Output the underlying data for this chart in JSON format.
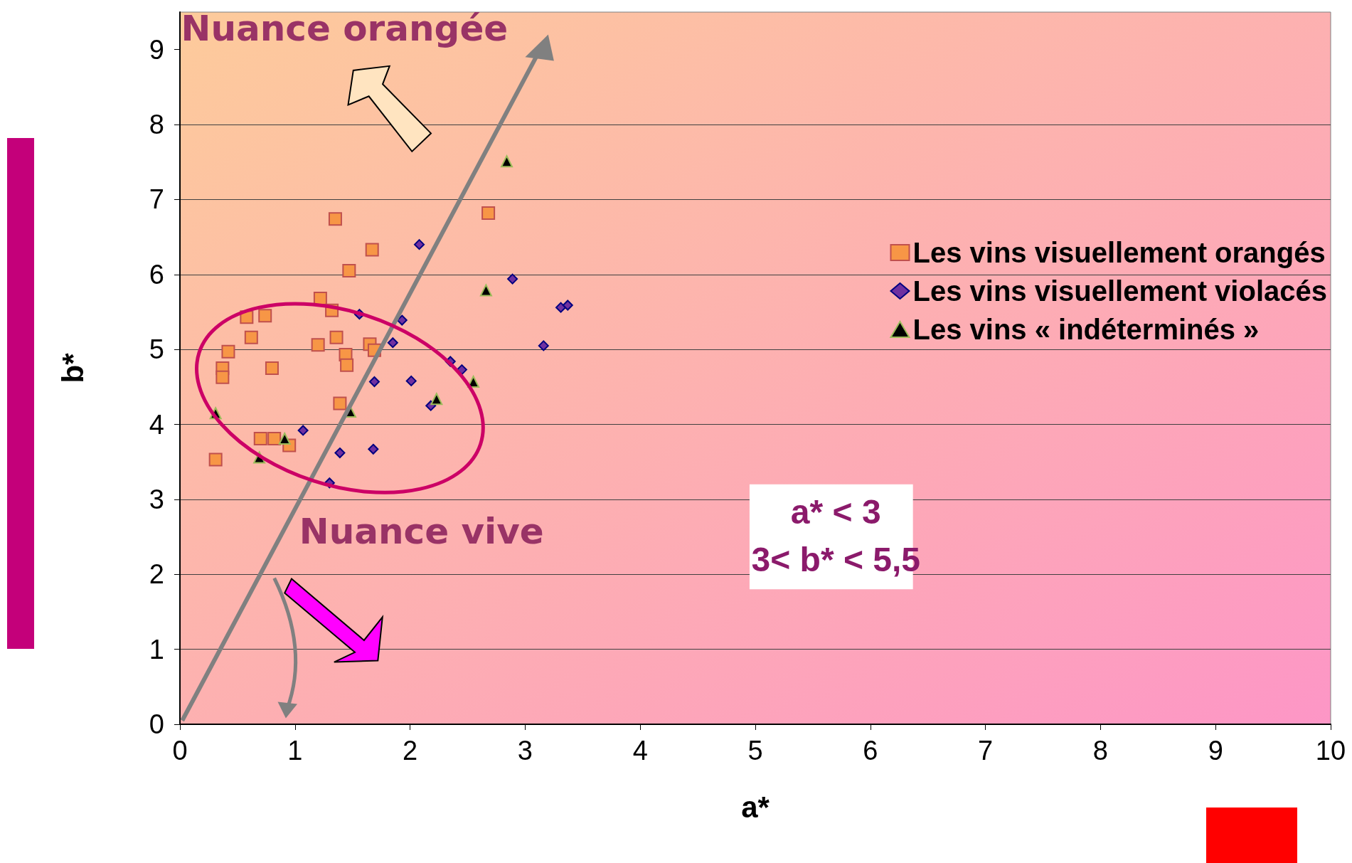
{
  "chart_data": {
    "type": "scatter",
    "xlabel": "a*",
    "ylabel": "b*",
    "xlim": [
      0,
      10
    ],
    "xticks": [
      0,
      1,
      2,
      3,
      4,
      5,
      6,
      7,
      8,
      9,
      10
    ],
    "ylim": [
      0,
      9.5
    ],
    "yticks": [
      0,
      1,
      2,
      3,
      4,
      5,
      6,
      7,
      8,
      9
    ],
    "grid": "y",
    "legend": "right",
    "annotations": [
      "Nuance orangée",
      "Nuance vive",
      "a* < 3",
      "3< b* < 5,5"
    ],
    "series": [
      {
        "name": "Les vins visuellement orangés",
        "color": "#f79646",
        "marker": "square",
        "x": [
          0.31,
          0.37,
          0.37,
          0.42,
          0.58,
          0.62,
          0.74,
          0.8,
          0.7,
          0.82,
          0.95,
          1.35,
          1.67,
          1.47,
          1.22,
          1.32,
          1.2,
          1.36,
          1.44,
          1.45,
          1.65,
          1.69,
          1.39,
          2.68
        ],
        "values": [
          3.53,
          4.75,
          4.63,
          4.97,
          5.43,
          5.16,
          5.45,
          4.75,
          3.81,
          3.81,
          3.72,
          6.74,
          6.33,
          6.05,
          5.68,
          5.52,
          5.06,
          5.16,
          4.93,
          4.79,
          5.07,
          4.99,
          4.28,
          6.82
        ]
      },
      {
        "name": "Les vins visuellement violacés",
        "color": "#7030a0",
        "marker": "diamond",
        "x": [
          2.08,
          2.89,
          1.56,
          1.93,
          1.85,
          3.31,
          3.37,
          3.16,
          2.35,
          2.45,
          1.69,
          2.01,
          2.18,
          1.07,
          1.39,
          1.68,
          1.3
        ],
        "values": [
          6.4,
          5.94,
          5.47,
          5.39,
          5.09,
          5.56,
          5.59,
          5.05,
          4.84,
          4.73,
          4.57,
          4.58,
          4.25,
          3.92,
          3.62,
          3.67,
          3.22
        ]
      },
      {
        "name": "Les vins « indéterminés »",
        "color": "#000000",
        "marker": "triangle",
        "x": [
          0.31,
          0.69,
          0.91,
          1.48,
          2.23,
          2.55,
          2.84,
          2.66
        ],
        "values": [
          4.15,
          3.56,
          3.81,
          4.17,
          4.34,
          4.57,
          7.51,
          5.79
        ]
      }
    ]
  }
}
